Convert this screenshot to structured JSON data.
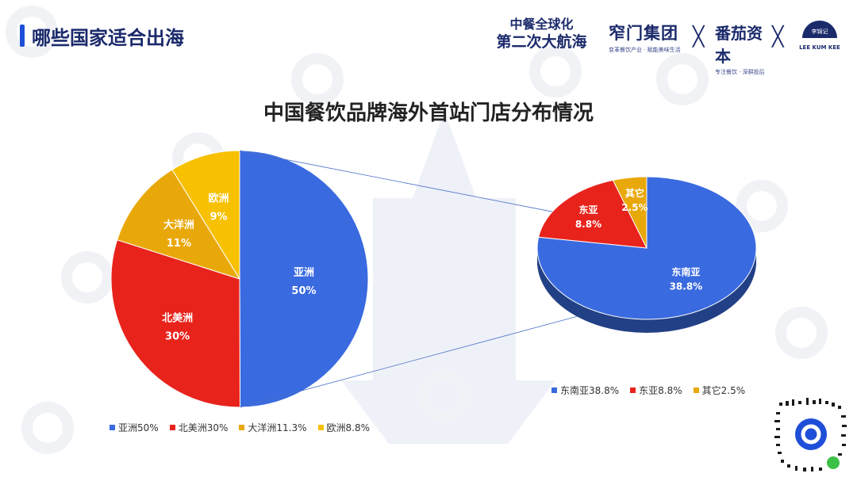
{
  "header": {
    "title": "哪些国家适合出海"
  },
  "logos": {
    "slogan_line1": "中餐全球化",
    "slogan_line2": "第二次大航海",
    "brand1_name": "窄门集团",
    "brand1_sub": "变革餐饮产业 · 赋能美味生活",
    "cross_symbol": "╳",
    "brand2_name": "番茄资本",
    "brand2_sub": "专注餐饮 · 深耕投后",
    "brand3_badge": "李锦记",
    "brand3_name": "LEE KUM KEE"
  },
  "colors": {
    "blue": "#3a6ae0",
    "red": "#e8231b",
    "orange": "#e9a80a",
    "yellow": "#f7c000",
    "navy": "#1b2a6b"
  },
  "chart_data": [
    {
      "type": "pie",
      "title": "中国餐饮品牌海外首站门店分布情况",
      "slices": [
        {
          "name": "亚洲",
          "label": "亚洲",
          "value": 50,
          "value_label": "50%",
          "legend": "亚洲50%",
          "color": "#3a6ae0"
        },
        {
          "name": "北美洲",
          "label": "北美洲",
          "value": 30,
          "value_label": "30%",
          "legend": "北美洲30%",
          "color": "#e8231b"
        },
        {
          "name": "大洋洲",
          "label": "大洋洲",
          "value": 11.3,
          "value_label": "11%",
          "legend": "大洋洲11.3%",
          "color": "#e9a80a"
        },
        {
          "name": "欧洲",
          "label": "欧洲",
          "value": 8.8,
          "value_label": "9%",
          "legend": "欧洲8.8%",
          "color": "#f7c000"
        }
      ],
      "legend_position": "bottom"
    },
    {
      "type": "pie",
      "subtype": "3d-exploded-detail-of-亚洲",
      "slices": [
        {
          "name": "东南亚",
          "label": "东南亚",
          "value": 38.8,
          "value_label": "38.8%",
          "legend": "东南亚38.8%",
          "color": "#3a6ae0"
        },
        {
          "name": "东亚",
          "label": "东亚",
          "value": 8.8,
          "value_label": "8.8%",
          "legend": "东亚8.8%",
          "color": "#e8231b"
        },
        {
          "name": "其它",
          "label": "其它",
          "value": 2.5,
          "value_label": "2.5%",
          "legend": "其它2.5%",
          "color": "#e9a80a"
        }
      ],
      "legend_position": "bottom"
    }
  ]
}
